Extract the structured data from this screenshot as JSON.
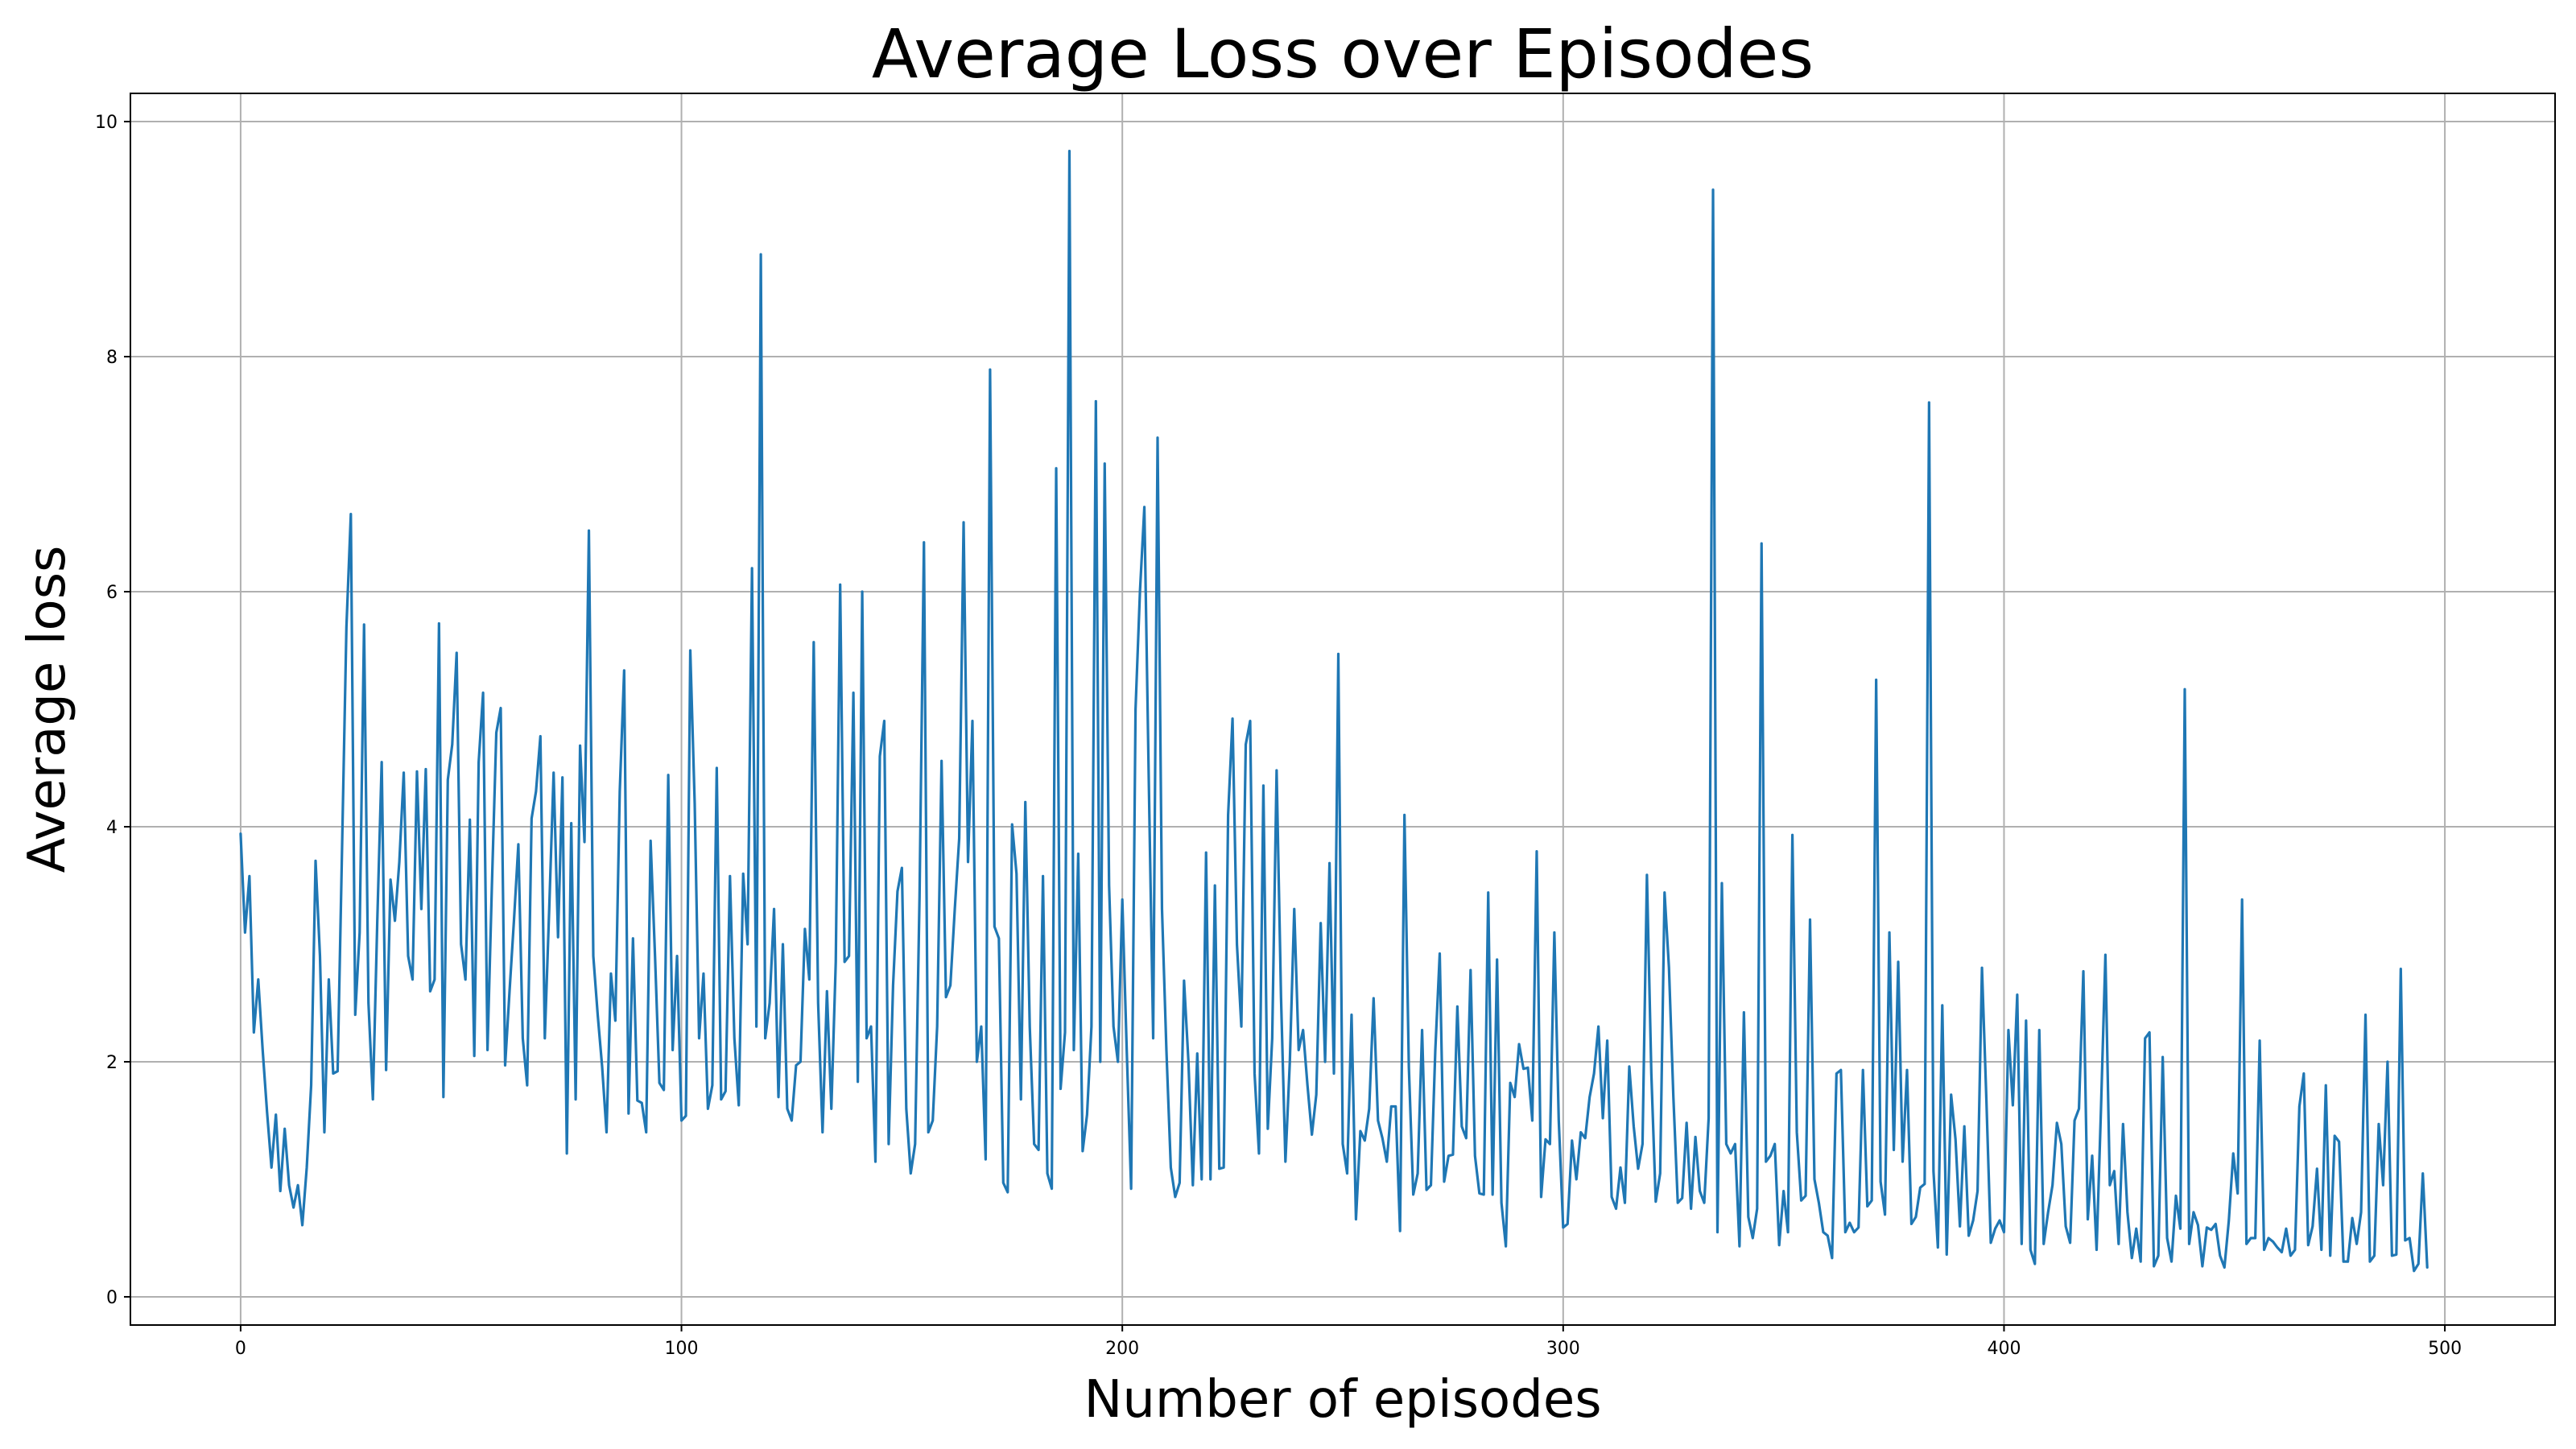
{
  "chart_data": {
    "type": "line",
    "title": "Average Loss over Episodes",
    "xlabel": "Number of episodes",
    "ylabel": "Average loss",
    "xlim": [
      -25,
      525
    ],
    "ylim": [
      -0.24,
      10.24
    ],
    "xticks": [
      0,
      100,
      200,
      300,
      400,
      500
    ],
    "yticks": [
      0,
      2,
      4,
      6,
      8,
      10
    ],
    "grid": true,
    "line_color": "#1f77b4",
    "series": [
      {
        "values": [
          3.94,
          3.1,
          3.58,
          2.25,
          2.7,
          2.1,
          1.57,
          1.1,
          1.55,
          0.9,
          1.43,
          0.95,
          0.76,
          0.95,
          0.61,
          1.1,
          1.8,
          3.71,
          2.9,
          1.4,
          2.7,
          1.9,
          1.92,
          3.8,
          5.7,
          6.66,
          2.4,
          3.1,
          5.72,
          2.5,
          1.68,
          3.2,
          4.55,
          1.93,
          3.55,
          3.2,
          3.7,
          4.46,
          2.9,
          2.7,
          4.47,
          3.3,
          4.49,
          2.6,
          2.7,
          5.73,
          1.7,
          4.4,
          4.7,
          5.48,
          3.0,
          2.7,
          4.06,
          2.05,
          4.55,
          5.14,
          2.1,
          3.5,
          4.8,
          5.01,
          1.97,
          2.6,
          3.2,
          3.85,
          2.2,
          1.8,
          4.07,
          4.3,
          4.77,
          2.2,
          3.3,
          4.46,
          3.06,
          4.42,
          1.22,
          4.03,
          1.68,
          4.69,
          3.87,
          6.52,
          2.9,
          2.4,
          1.96,
          1.4,
          2.75,
          2.35,
          4.3,
          5.33,
          1.56,
          3.05,
          1.67,
          1.65,
          1.4,
          3.88,
          2.9,
          1.82,
          1.76,
          4.44,
          2.1,
          2.9,
          1.5,
          1.54,
          5.5,
          4.2,
          2.2,
          2.75,
          1.6,
          1.8,
          4.5,
          1.68,
          1.75,
          3.58,
          2.2,
          1.63,
          3.6,
          3.0,
          6.2,
          2.3,
          8.87,
          2.2,
          2.5,
          3.3,
          1.7,
          3.0,
          1.6,
          1.5,
          1.97,
          2.0,
          3.13,
          2.7,
          5.57,
          2.5,
          1.4,
          2.6,
          1.6,
          2.85,
          6.06,
          2.85,
          2.9,
          5.14,
          1.83,
          6.0,
          2.2,
          2.3,
          1.15,
          4.6,
          4.9,
          1.3,
          2.65,
          3.45,
          3.65,
          1.6,
          1.05,
          1.3,
          3.4,
          6.42,
          1.4,
          1.5,
          2.3,
          4.56,
          2.55,
          2.65,
          3.3,
          3.9,
          6.59,
          3.7,
          4.9,
          2.0,
          2.3,
          1.17,
          7.89,
          3.15,
          3.05,
          0.97,
          0.89,
          4.02,
          3.6,
          1.68,
          4.21,
          2.3,
          1.3,
          1.25,
          3.58,
          1.05,
          0.92,
          7.05,
          1.77,
          2.25,
          9.75,
          2.1,
          3.77,
          1.24,
          1.55,
          2.3,
          7.62,
          2.0,
          7.09,
          3.5,
          2.3,
          2.0,
          3.38,
          2.1,
          0.92,
          5.0,
          6.0,
          6.72,
          4.4,
          2.2,
          7.31,
          3.3,
          2.1,
          1.1,
          0.85,
          0.97,
          2.69,
          2.0,
          0.95,
          2.07,
          1.0,
          3.78,
          1.0,
          3.5,
          1.09,
          1.1,
          4.1,
          4.92,
          3.0,
          2.3,
          4.7,
          4.9,
          1.9,
          1.22,
          4.35,
          1.43,
          2.2,
          4.48,
          2.55,
          1.15,
          2.0,
          3.3,
          2.1,
          2.27,
          1.8,
          1.38,
          1.72,
          3.18,
          2.0,
          3.69,
          1.9,
          5.47,
          1.3,
          1.05,
          2.4,
          0.66,
          1.41,
          1.33,
          1.6,
          2.54,
          1.5,
          1.35,
          1.15,
          1.62,
          1.62,
          0.56,
          4.1,
          1.95,
          0.87,
          1.05,
          2.27,
          0.91,
          0.95,
          2.1,
          2.92,
          0.98,
          1.2,
          1.21,
          2.47,
          1.45,
          1.35,
          2.78,
          1.2,
          0.88,
          0.87,
          3.44,
          0.87,
          2.87,
          0.8,
          0.43,
          1.82,
          1.7,
          2.15,
          1.94,
          1.95,
          1.5,
          3.79,
          0.85,
          1.34,
          1.3,
          3.1,
          1.5,
          0.59,
          0.62,
          1.33,
          1.0,
          1.4,
          1.35,
          1.7,
          1.9,
          2.3,
          1.52,
          2.18,
          0.85,
          0.75,
          1.1,
          0.8,
          1.96,
          1.45,
          1.09,
          1.3,
          3.59,
          1.9,
          0.81,
          1.05,
          3.44,
          2.8,
          1.7,
          0.8,
          0.84,
          1.48,
          0.75,
          1.36,
          0.9,
          0.8,
          1.52,
          9.42,
          0.55,
          3.52,
          1.3,
          1.22,
          1.3,
          0.43,
          2.42,
          0.68,
          0.5,
          0.75,
          6.41,
          1.15,
          1.2,
          1.3,
          0.44,
          0.9,
          0.55,
          3.93,
          1.4,
          0.82,
          0.86,
          3.21,
          1.0,
          0.8,
          0.55,
          0.52,
          0.33,
          1.9,
          1.93,
          0.55,
          0.63,
          0.55,
          0.59,
          1.93,
          0.77,
          0.82,
          5.25,
          0.98,
          0.7,
          3.1,
          1.25,
          2.85,
          1.15,
          1.93,
          0.62,
          0.68,
          0.93,
          0.96,
          7.61,
          1.07,
          0.42,
          2.48,
          0.36,
          1.72,
          1.34,
          0.6,
          1.45,
          0.52,
          0.65,
          0.9,
          2.8,
          1.68,
          0.46,
          0.58,
          0.65,
          0.55,
          2.27,
          1.63,
          2.57,
          0.45,
          2.35,
          0.4,
          0.28,
          2.27,
          0.45,
          0.72,
          0.95,
          1.48,
          1.3,
          0.6,
          0.46,
          1.5,
          1.6,
          2.77,
          0.66,
          1.2,
          0.4,
          1.6,
          2.91,
          0.95,
          1.07,
          0.45,
          1.47,
          0.72,
          0.33,
          0.58,
          0.3,
          2.2,
          2.25,
          0.26,
          0.35,
          2.04,
          0.5,
          0.3,
          0.86,
          0.58,
          5.17,
          0.45,
          0.72,
          0.61,
          0.26,
          0.59,
          0.57,
          0.62,
          0.35,
          0.25,
          0.65,
          1.22,
          0.88,
          3.38,
          0.45,
          0.5,
          0.5,
          2.18,
          0.4,
          0.5,
          0.47,
          0.42,
          0.38,
          0.58,
          0.35,
          0.4,
          1.62,
          1.9,
          0.44,
          0.6,
          1.09,
          0.4,
          1.8,
          0.35,
          1.37,
          1.32,
          0.3,
          0.3,
          0.67,
          0.45,
          0.72,
          2.4,
          0.3,
          0.35,
          1.47,
          0.95,
          2.0,
          0.35,
          0.36,
          2.79,
          0.48,
          0.5,
          0.22,
          0.28,
          1.05,
          0.25
        ]
      }
    ]
  }
}
